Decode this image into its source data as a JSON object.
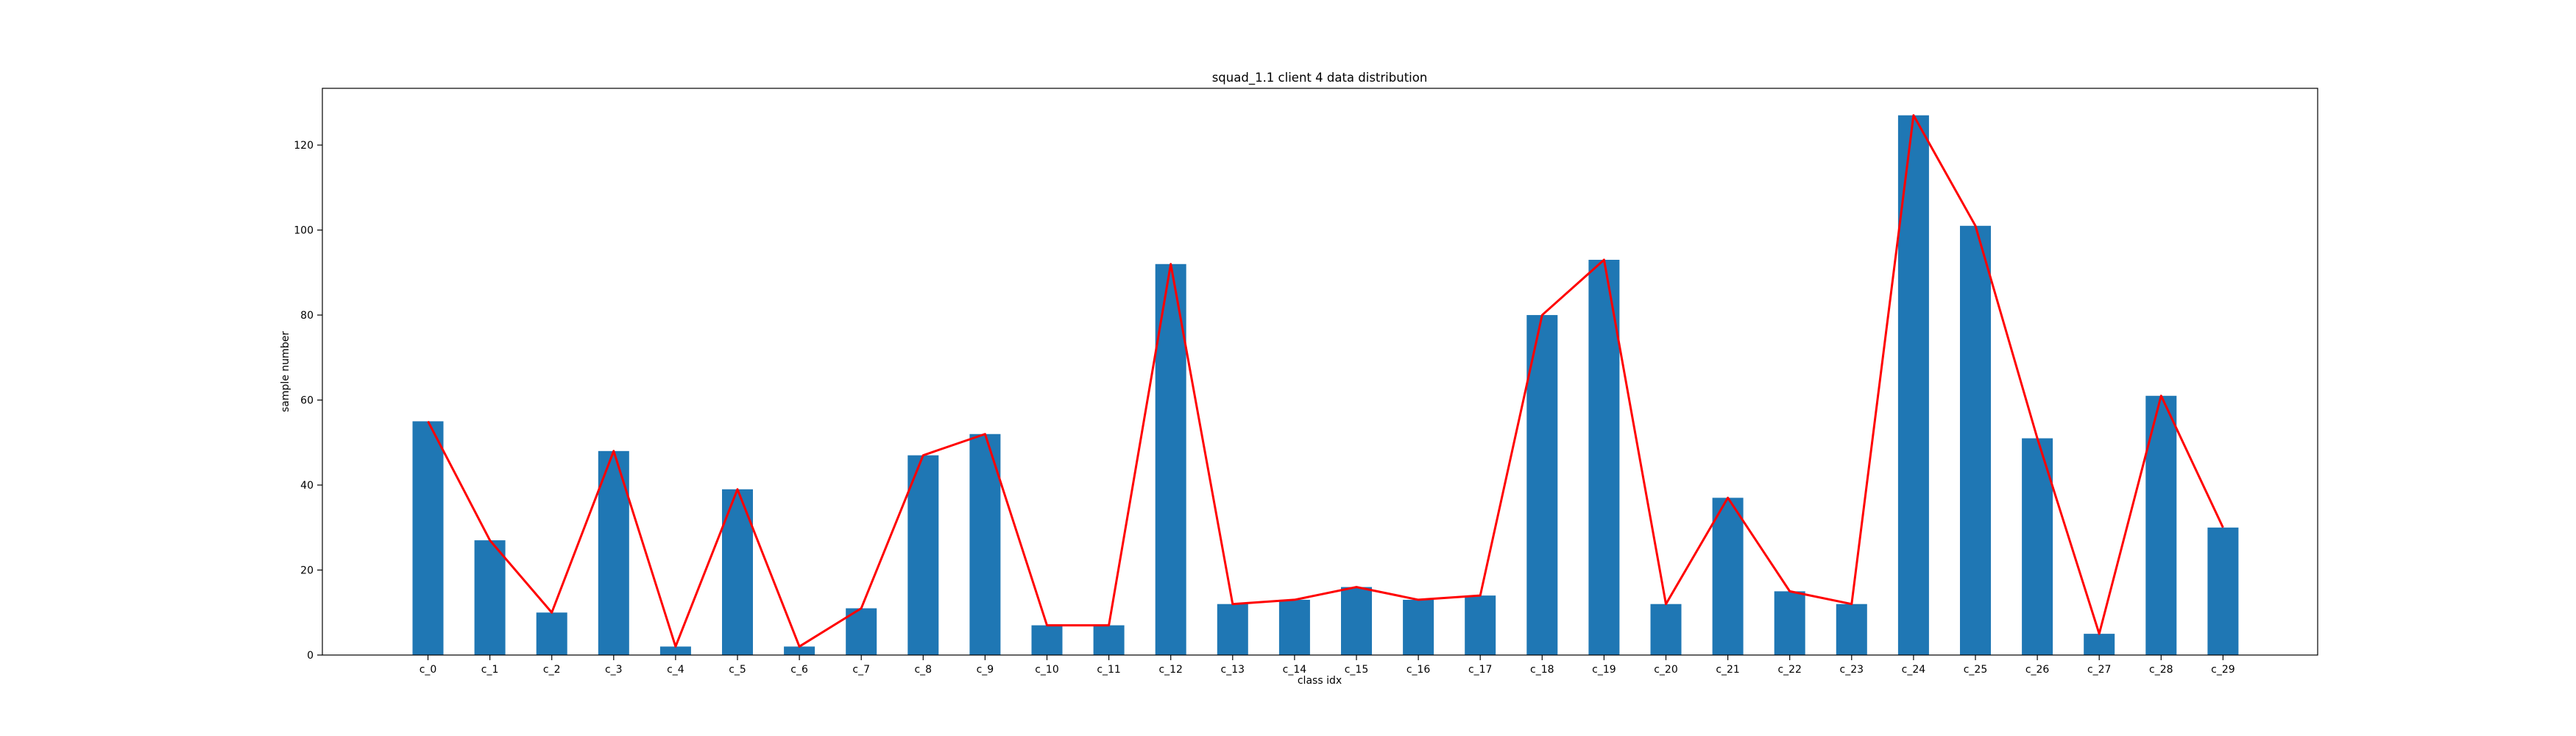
{
  "chart_data": {
    "type": "bar",
    "title": "squad_1.1 client 4 data distribution",
    "xlabel": "class idx",
    "ylabel": "sample number",
    "categories": [
      "c_0",
      "c_1",
      "c_2",
      "c_3",
      "c_4",
      "c_5",
      "c_6",
      "c_7",
      "c_8",
      "c_9",
      "c_10",
      "c_11",
      "c_12",
      "c_13",
      "c_14",
      "c_15",
      "c_16",
      "c_17",
      "c_18",
      "c_19",
      "c_20",
      "c_21",
      "c_22",
      "c_23",
      "c_24",
      "c_25",
      "c_26",
      "c_27",
      "c_28",
      "c_29"
    ],
    "values": [
      55,
      27,
      10,
      48,
      2,
      39,
      2,
      11,
      47,
      52,
      7,
      7,
      92,
      12,
      13,
      16,
      13,
      14,
      80,
      93,
      12,
      37,
      15,
      12,
      127,
      101,
      51,
      5,
      61,
      30
    ],
    "yticks": [
      "0",
      "20",
      "40",
      "60",
      "80",
      "100",
      "120"
    ],
    "ylim": [
      0,
      133.35
    ],
    "overlay": "line",
    "grid": false,
    "colors": {
      "bar": "#1f77b4",
      "line": "#ff0000",
      "axes": "#000000"
    }
  }
}
